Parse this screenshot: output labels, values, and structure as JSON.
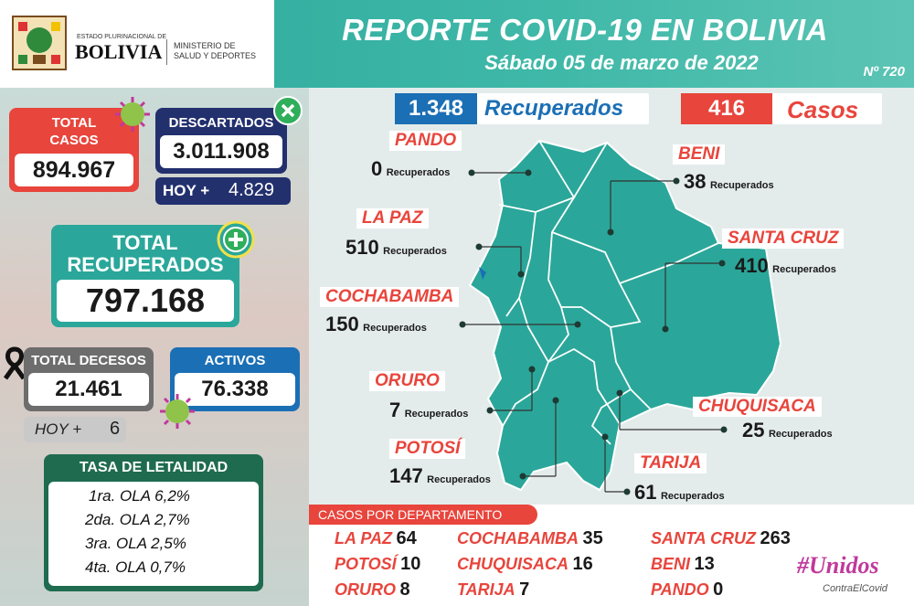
{
  "header": {
    "logo_top": "ESTADO PLURINACIONAL DE",
    "logo_main": "BOLIVIA",
    "ministry_line1": "MINISTERIO DE",
    "ministry_line2": "SALUD Y DEPORTES",
    "title": "REPORTE COVID-19 EN BOLIVIA",
    "date": "Sábado 05 de marzo de 2022",
    "report_number": "Nº 720"
  },
  "summary": {
    "total_casos_label1": "TOTAL",
    "total_casos_label2": "CASOS",
    "total_casos_value": "894.967",
    "descartados_label": "DESCARTADOS",
    "descartados_value": "3.011.908",
    "descartados_hoy_label": "HOY +",
    "descartados_hoy_value": "4.829",
    "recuperados_label1": "TOTAL",
    "recuperados_label2": "RECUPERADOS",
    "recuperados_value": "797.168",
    "decesos_label": "TOTAL DECESOS",
    "decesos_value": "21.461",
    "decesos_hoy_label": "HOY +",
    "decesos_hoy_value": "6",
    "activos_label": "ACTIVOS",
    "activos_value": "76.338"
  },
  "letalidad": {
    "title": "TASA DE LETALIDAD",
    "rows": [
      {
        "label": "1ra. OLA",
        "value": "6,2%"
      },
      {
        "label": "2da. OLA",
        "value": "2,7%"
      },
      {
        "label": "3ra. OLA",
        "value": "2,5%"
      },
      {
        "label": "4ta. OLA",
        "value": "0,7%"
      }
    ]
  },
  "daily": {
    "recuperados_value": "1.348",
    "recuperados_label": "Recuperados",
    "casos_value": "416",
    "casos_label": "Casos"
  },
  "departments_recovered": {
    "unit": "Recuperados",
    "pando": {
      "name": "PANDO",
      "value": "0"
    },
    "beni": {
      "name": "BENI",
      "value": "38"
    },
    "la_paz": {
      "name": "LA PAZ",
      "value": "510"
    },
    "santa_cruz": {
      "name": "SANTA CRUZ",
      "value": "410"
    },
    "cochabamba": {
      "name": "COCHABAMBA",
      "value": "150"
    },
    "oruro": {
      "name": "ORURO",
      "value": "7"
    },
    "chuquisaca": {
      "name": "CHUQUISACA",
      "value": "25"
    },
    "potosi": {
      "name": "POTOSÍ",
      "value": "147"
    },
    "tarija": {
      "name": "TARIJA",
      "value": "61"
    }
  },
  "casos_por_departamento": {
    "title": "CASOS POR DEPARTAMENTO",
    "rows": [
      [
        {
          "name": "LA PAZ",
          "value": "64"
        },
        {
          "name": "COCHABAMBA",
          "value": "35"
        },
        {
          "name": "SANTA CRUZ",
          "value": "263"
        }
      ],
      [
        {
          "name": "POTOSÍ",
          "value": "10"
        },
        {
          "name": "CHUQUISACA",
          "value": "16"
        },
        {
          "name": "BENI",
          "value": "13"
        }
      ],
      [
        {
          "name": "ORURO",
          "value": "8"
        },
        {
          "name": "TARIJA",
          "value": "7"
        },
        {
          "name": "PANDO",
          "value": "0"
        }
      ]
    ]
  },
  "campaign": {
    "main": "#Unidos",
    "sub": "ContraElCovid"
  },
  "colors": {
    "teal": "#2aa79a",
    "red": "#e8453c",
    "navy": "#23306e",
    "dark_green": "#1f6b50",
    "blue": "#1b6fb5"
  }
}
